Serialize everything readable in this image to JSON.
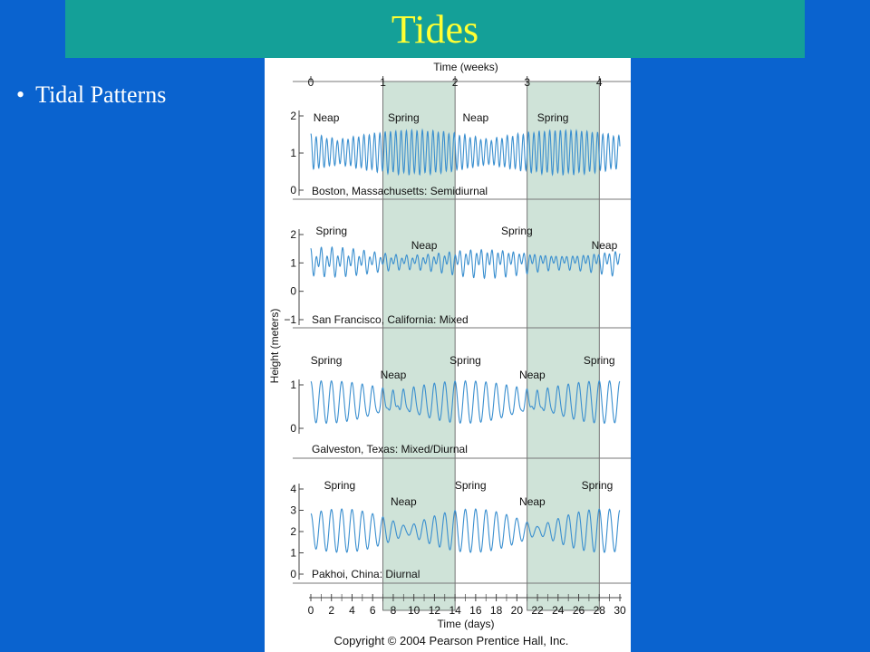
{
  "slide": {
    "title": "Tides",
    "bullet": "Tidal Patterns"
  },
  "colors": {
    "background": "#0a63cf",
    "title_bar": "#14a098",
    "title_text": "#ffff33",
    "spring_band": "#cfe3d8",
    "curve": "#3a8fcf"
  },
  "chart_data": {
    "type": "line",
    "top_axis": {
      "label": "Time (weeks)",
      "ticks": [
        "0",
        "1",
        "2",
        "3",
        "4"
      ]
    },
    "bottom_axis": {
      "label": "Time (days)",
      "ticks": [
        "0",
        "2",
        "4",
        "6",
        "8",
        "10",
        "12",
        "14",
        "16",
        "18",
        "20",
        "22",
        "24",
        "26",
        "28",
        "30"
      ],
      "range": [
        0,
        30
      ]
    },
    "ylabel": "Height (meters)",
    "shaded_bands_days": [
      [
        7,
        14
      ],
      [
        21,
        28
      ]
    ],
    "copyright": "Copyright © 2004 Pearson Prentice Hall, Inc.",
    "panels": [
      {
        "caption": "Boston, Massachusetts: Semidiurnal",
        "tide_type": "semidiurnal",
        "yticks": [
          "0",
          "1",
          "2"
        ],
        "ylim": [
          0,
          2
        ],
        "labels": [
          {
            "text": "Neap",
            "day": 1.5
          },
          {
            "text": "Spring",
            "day": 9
          },
          {
            "text": "Neap",
            "day": 16
          },
          {
            "text": "Spring",
            "day": 23.5
          }
        ]
      },
      {
        "caption": "San Francisco, California: Mixed",
        "tide_type": "mixed",
        "yticks": [
          "−1",
          "0",
          "1",
          "2"
        ],
        "ylim": [
          -1,
          2
        ],
        "labels": [
          {
            "text": "Spring",
            "day": 2
          },
          {
            "text": "Neap",
            "day": 11
          },
          {
            "text": "Spring",
            "day": 20
          },
          {
            "text": "Neap",
            "day": 28.5
          }
        ]
      },
      {
        "caption": "Galveston, Texas: Mixed/Diurnal",
        "tide_type": "mixed-diurnal",
        "yticks": [
          "0",
          "1"
        ],
        "ylim": [
          0,
          1.4
        ],
        "labels": [
          {
            "text": "Spring",
            "day": 1.5
          },
          {
            "text": "Neap",
            "day": 8
          },
          {
            "text": "Spring",
            "day": 15
          },
          {
            "text": "Neap",
            "day": 21.5
          },
          {
            "text": "Spring",
            "day": 28
          }
        ]
      },
      {
        "caption": "Pakhoi, China: Diurnal",
        "tide_type": "diurnal",
        "yticks": [
          "0",
          "1",
          "2",
          "3",
          "4"
        ],
        "ylim": [
          0,
          4
        ],
        "labels": [
          {
            "text": "Spring",
            "day": 2.8
          },
          {
            "text": "Neap",
            "day": 9
          },
          {
            "text": "Spring",
            "day": 15.5
          },
          {
            "text": "Neap",
            "day": 21.5
          },
          {
            "text": "Spring",
            "day": 27.8
          }
        ]
      }
    ]
  }
}
